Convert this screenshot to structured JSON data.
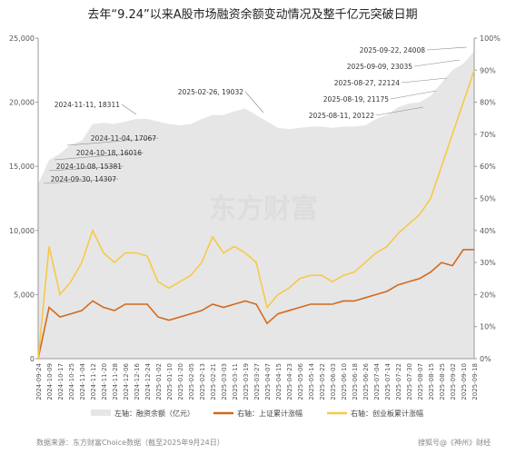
{
  "chart_data": {
    "type": "area-line",
    "title": "去年“9.24”以来A股市场融资余额变动情况及整千亿元突破日期",
    "categories": [
      "2024-09-24",
      "2024-10-09",
      "2024-10-17",
      "2024-10-25",
      "2024-11-04",
      "2024-11-12",
      "2024-11-20",
      "2024-11-28",
      "2024-12-06",
      "2024-12-16",
      "2024-12-24",
      "2025-01-02",
      "2025-01-10",
      "2025-01-20",
      "2025-02-05",
      "2025-02-13",
      "2025-02-21",
      "2025-03-03",
      "2025-03-11",
      "2025-03-19",
      "2025-03-27",
      "2025-04-07",
      "2025-04-15",
      "2025-04-23",
      "2025-05-06",
      "2025-05-14",
      "2025-05-22",
      "2025-06-03",
      "2025-06-10",
      "2025-06-18",
      "2025-06-26",
      "2025-07-04",
      "2025-07-14",
      "2025-07-22",
      "2025-07-30",
      "2025-08-07",
      "2025-08-15",
      "2025-08-25",
      "2025-09-02",
      "2025-09-10",
      "2025-09-18"
    ],
    "series": [
      {
        "name": "左轴：融资余额（亿元）",
        "color": "#e6e6e6",
        "values": [
          13600,
          15500,
          16000,
          16700,
          17000,
          18300,
          18400,
          18300,
          18500,
          18700,
          18700,
          18500,
          18300,
          18200,
          18300,
          18700,
          19000,
          19000,
          19300,
          19500,
          19000,
          18500,
          18000,
          17900,
          18000,
          18100,
          18100,
          18000,
          18100,
          18100,
          18200,
          18700,
          19000,
          19600,
          19900,
          20000,
          20500,
          21500,
          22500,
          23000,
          24000
        ]
      },
      {
        "name": "右轴：上证累计涨幅",
        "color": "#d2691e",
        "axis": "y2",
        "values": [
          0,
          16,
          13,
          14,
          15,
          18,
          16,
          15,
          17,
          17,
          17,
          13,
          12,
          13,
          14,
          15,
          17,
          16,
          17,
          18,
          17,
          11,
          14,
          15,
          16,
          17,
          17,
          17,
          18,
          18,
          19,
          20,
          21,
          23,
          24,
          25,
          27,
          30,
          29,
          34,
          34
        ]
      },
      {
        "name": "右轴：创业板累计涨幅",
        "color": "#f7c948",
        "axis": "y2",
        "values": [
          0,
          35,
          20,
          24,
          30,
          40,
          33,
          30,
          33,
          33,
          32,
          24,
          22,
          24,
          26,
          30,
          38,
          33,
          35,
          33,
          30,
          16,
          20,
          22,
          25,
          26,
          26,
          24,
          26,
          27,
          30,
          33,
          35,
          39,
          42,
          45,
          50,
          60,
          70,
          80,
          90
        ]
      }
    ],
    "ylim": [
      0,
      25000
    ],
    "yticks": [
      0,
      {
        "value": 5000,
        "label": "5,000"
      },
      {
        "value": 10000,
        "label": "10,000"
      },
      {
        "value": 15000,
        "label": "15,000"
      },
      {
        "value": 20000,
        "label": "20,000"
      },
      {
        "value": 25000,
        "label": "25,000"
      }
    ],
    "y2lim": [
      0,
      100
    ],
    "y2ticks": [
      {
        "value": 0,
        "label": "0%"
      },
      {
        "value": 10,
        "label": "10%"
      },
      {
        "value": 20,
        "label": "20%"
      },
      {
        "value": 30,
        "label": "30%"
      },
      {
        "value": 40,
        "label": "40%"
      },
      {
        "value": 50,
        "label": "50%"
      },
      {
        "value": 60,
        "label": "60%"
      },
      {
        "value": 70,
        "label": "70%"
      },
      {
        "value": 80,
        "label": "80%"
      },
      {
        "value": 90,
        "label": "90%"
      },
      {
        "value": 100,
        "label": "100%"
      }
    ],
    "annotations": [
      "2025-09-22, 24008",
      "2025-09-09, 23035",
      "2025-08-27, 22124",
      "2025-08-19, 21175",
      "2025-08-11, 20122",
      "2025-02-26, 19032",
      "2024-11-11, 18311",
      "2024-11-04, 17067",
      "2024-10-18, 16016",
      "2024-10-08, 15381",
      "2024-09-30, 14307"
    ],
    "watermark": "东方财富",
    "source": "数据来源：东方财富Choice数据（截至2025年9月24日）",
    "credit": "搜狐号@《神州》财经"
  }
}
